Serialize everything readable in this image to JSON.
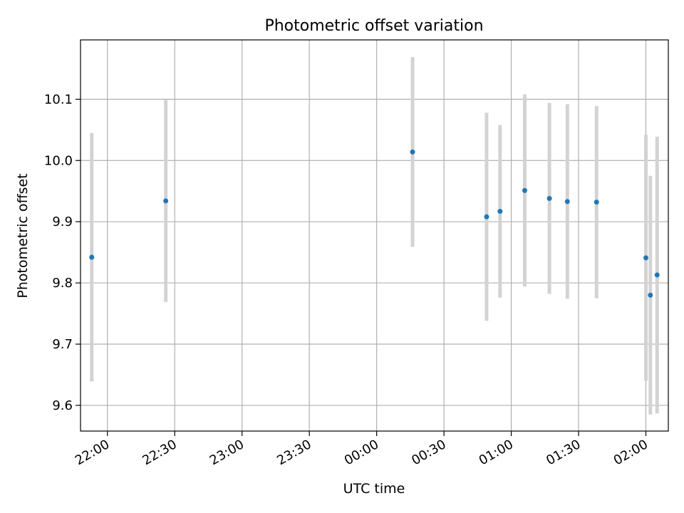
{
  "chart_data": {
    "type": "scatter",
    "title": "Photometric offset variation",
    "xlabel": "UTC time",
    "ylabel": "Photometric offset",
    "grid": true,
    "x_tick_labels": [
      "22:00",
      "22:30",
      "23:00",
      "23:30",
      "00:00",
      "00:30",
      "01:00",
      "01:30",
      "02:00"
    ],
    "y_tick_labels": [
      "9.6",
      "9.7",
      "9.8",
      "9.9",
      "10.0",
      "10.1"
    ],
    "xlim": [
      "21:48",
      "02:10"
    ],
    "ylim": [
      9.558,
      10.197
    ],
    "marker_color": "#1f77b4",
    "errorbar_color": "#d3d3d3",
    "series": [
      {
        "x": [
          "21:53",
          "22:26",
          "00:16",
          "00:49",
          "00:55",
          "01:06",
          "01:17",
          "01:25",
          "01:38",
          "02:00",
          "02:02",
          "02:05"
        ],
        "y": [
          9.842,
          9.934,
          10.014,
          9.908,
          9.917,
          9.951,
          9.938,
          9.933,
          9.932,
          9.841,
          9.78,
          9.813
        ],
        "yerr": [
          0.203,
          0.165,
          0.155,
          0.17,
          0.141,
          0.157,
          0.156,
          0.159,
          0.157,
          0.201,
          0.195,
          0.226
        ]
      }
    ]
  }
}
